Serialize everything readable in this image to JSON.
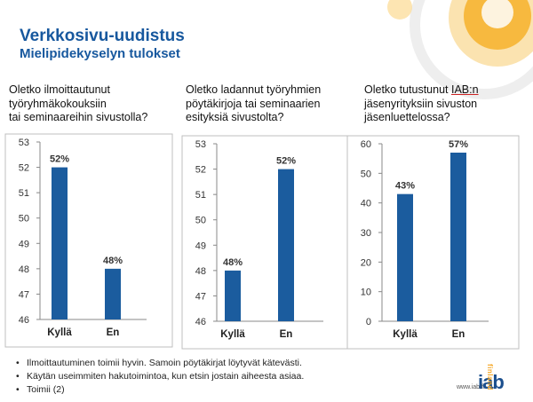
{
  "header": {
    "title": "Verkkosivu-uudistus",
    "subtitle": "Mielipidekyselyn tulokset"
  },
  "colors": {
    "accent": "#17589e",
    "bar": "#1b5c9e",
    "orange": "#f5a623"
  },
  "chart_data": [
    {
      "type": "bar",
      "title": "Oletko ilmoittautunut\ntyöryhmäkokouksiin\ntai seminaareihin sivustolla?",
      "categories": [
        "Kyllä",
        "En"
      ],
      "values": [
        52,
        48
      ],
      "data_labels": [
        "52%",
        "48%"
      ],
      "ylim": [
        46,
        53
      ],
      "yticks": [
        "46",
        "47",
        "48",
        "49",
        "50",
        "51",
        "52",
        "53"
      ],
      "grid": false
    },
    {
      "type": "bar",
      "title": "Oletko ladannut työryhmien\npöytäkirjoja tai seminaarien\nesityksiä sivustolta?",
      "categories": [
        "Kyllä",
        "En"
      ],
      "values": [
        48,
        52
      ],
      "data_labels": [
        "48%",
        "52%"
      ],
      "ylim": [
        46,
        53
      ],
      "yticks": [
        "46",
        "47",
        "48",
        "49",
        "50",
        "51",
        "52",
        "53"
      ],
      "grid": false
    },
    {
      "type": "bar",
      "title_parts": [
        "Oletko tutustunut ",
        "IAB:n",
        "\njäsenyrityksiin sivuston\njäsenluettelossa?"
      ],
      "categories": [
        "Kyllä",
        "En"
      ],
      "values": [
        43,
        57
      ],
      "data_labels": [
        "43%",
        "57%"
      ],
      "ylim": [
        0,
        60
      ],
      "yticks": [
        "0",
        "10",
        "20",
        "30",
        "40",
        "50",
        "60"
      ],
      "grid": false
    }
  ],
  "notes": [
    "Ilmoittautuminen toimii hyvin. Samoin pöytäkirjat löytyvät kätevästi.",
    "Käytän useimmiten hakutoimintoa, kun etsin jostain aiheesta asiaa.",
    "Toimii (2)"
  ],
  "footer": {
    "site": "www.iab.fi",
    "logo": "iab",
    "logo_country": "finland"
  }
}
